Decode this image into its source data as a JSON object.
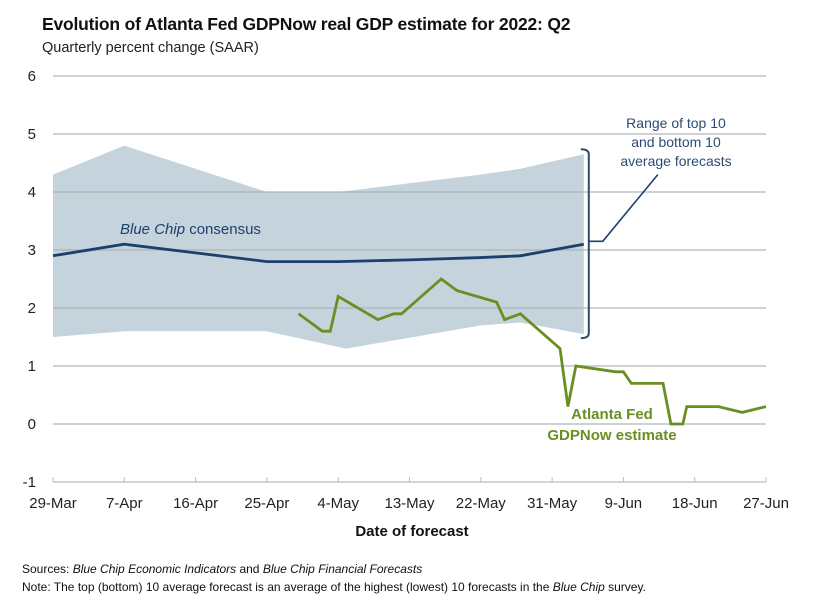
{
  "chart_data": {
    "type": "line",
    "title": "Evolution of Atlanta Fed GDPNow real GDP estimate for 2022: Q2",
    "subtitle": "Quarterly percent change (SAAR)",
    "xlabel": "Date of forecast",
    "ylabel": "",
    "ylim": [
      -1,
      6
    ],
    "yticks": [
      6,
      5,
      4,
      3,
      2,
      1,
      0,
      -1
    ],
    "x_unit": "days since 29-Mar",
    "xlim": [
      0,
      90
    ],
    "xticks": [
      {
        "day": 0,
        "label": "29-Mar"
      },
      {
        "day": 9,
        "label": "7-Apr"
      },
      {
        "day": 18,
        "label": "16-Apr"
      },
      {
        "day": 27,
        "label": "25-Apr"
      },
      {
        "day": 36,
        "label": "4-May"
      },
      {
        "day": 45,
        "label": "13-May"
      },
      {
        "day": 54,
        "label": "22-May"
      },
      {
        "day": 63,
        "label": "31-May"
      },
      {
        "day": 72,
        "label": "9-Jun"
      },
      {
        "day": 81,
        "label": "18-Jun"
      },
      {
        "day": 90,
        "label": "27-Jun"
      }
    ],
    "grid": true,
    "series": [
      {
        "name": "Blue Chip top 10 average",
        "role": "band-upper",
        "color": "#c5d3dc",
        "points": [
          [
            0,
            4.3
          ],
          [
            9,
            4.8
          ],
          [
            18,
            4.4
          ],
          [
            27,
            4.0
          ],
          [
            36,
            4.0
          ],
          [
            45,
            4.15
          ],
          [
            54,
            4.3
          ],
          [
            59,
            4.4
          ],
          [
            67,
            4.65
          ]
        ]
      },
      {
        "name": "Blue Chip bottom 10 average",
        "role": "band-lower",
        "color": "#c5d3dc",
        "points": [
          [
            0,
            1.5
          ],
          [
            9,
            1.6
          ],
          [
            27,
            1.6
          ],
          [
            37,
            1.3
          ],
          [
            54,
            1.7
          ],
          [
            59,
            1.75
          ],
          [
            67,
            1.55
          ]
        ]
      },
      {
        "name": "Blue Chip consensus",
        "role": "line",
        "color": "#1d3f6e",
        "points": [
          [
            0,
            2.9
          ],
          [
            9,
            3.1
          ],
          [
            18,
            2.95
          ],
          [
            27,
            2.8
          ],
          [
            36,
            2.8
          ],
          [
            45,
            2.83
          ],
          [
            54,
            2.87
          ],
          [
            59,
            2.9
          ],
          [
            67,
            3.1
          ]
        ]
      },
      {
        "name": "Atlanta Fed GDPNow estimate",
        "role": "line",
        "color": "#6b8e23",
        "points": [
          [
            31,
            1.9
          ],
          [
            34,
            1.6
          ],
          [
            35,
            1.6
          ],
          [
            36,
            2.2
          ],
          [
            41,
            1.8
          ],
          [
            43,
            1.9
          ],
          [
            44,
            1.9
          ],
          [
            49,
            2.5
          ],
          [
            51,
            2.3
          ],
          [
            56,
            2.1
          ],
          [
            57,
            1.8
          ],
          [
            59,
            1.9
          ],
          [
            64,
            1.3
          ],
          [
            65,
            0.3
          ],
          [
            66,
            1.0
          ],
          [
            71,
            0.9
          ],
          [
            72,
            0.9
          ],
          [
            73,
            0.7
          ],
          [
            77,
            0.7
          ],
          [
            78,
            0.0
          ],
          [
            79.5,
            0.0
          ],
          [
            80,
            0.3
          ],
          [
            84,
            0.3
          ],
          [
            87,
            0.2
          ],
          [
            90,
            0.3
          ]
        ]
      }
    ],
    "annotations": {
      "consensus_label_italic": "Blue Chip",
      "consensus_label_rest": " consensus",
      "range_label": [
        "Range of top 10",
        "and bottom 10",
        "average forecasts"
      ],
      "gdpnow_label": [
        "Atlanta Fed",
        "GDPNow estimate"
      ]
    },
    "legend": "none (inline annotations)"
  },
  "footer": {
    "sources_prefix": "Sources:",
    "sources_italic_1": "Blue Chip Economic Indicators",
    "sources_mid": " and ",
    "sources_italic_2": "Blue Chip Financial Forecasts",
    "note_prefix": "Note:",
    "note_text": " The top (bottom) 10 average forecast is an average of the highest (lowest) 10 forecasts in the ",
    "note_italic": "Blue Chip",
    "note_suffix": " survey."
  }
}
